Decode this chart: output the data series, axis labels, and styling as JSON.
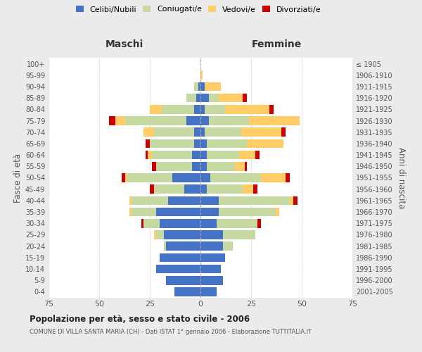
{
  "age_groups": [
    "0-4",
    "5-9",
    "10-14",
    "15-19",
    "20-24",
    "25-29",
    "30-34",
    "35-39",
    "40-44",
    "45-49",
    "50-54",
    "55-59",
    "60-64",
    "65-69",
    "70-74",
    "75-79",
    "80-84",
    "85-89",
    "90-94",
    "95-99",
    "100+"
  ],
  "birth_years": [
    "2001-2005",
    "1996-2000",
    "1991-1995",
    "1986-1990",
    "1981-1985",
    "1976-1980",
    "1971-1975",
    "1966-1970",
    "1961-1965",
    "1956-1960",
    "1951-1955",
    "1946-1950",
    "1941-1945",
    "1936-1940",
    "1931-1935",
    "1926-1930",
    "1921-1925",
    "1916-1920",
    "1911-1915",
    "1906-1910",
    "≤ 1905"
  ],
  "maschi": {
    "celibi": [
      13,
      17,
      22,
      20,
      17,
      18,
      20,
      22,
      16,
      8,
      14,
      4,
      4,
      3,
      3,
      7,
      3,
      2,
      1,
      0,
      0
    ],
    "coniugati": [
      0,
      0,
      0,
      0,
      1,
      4,
      8,
      12,
      18,
      15,
      22,
      18,
      20,
      22,
      20,
      30,
      16,
      5,
      2,
      0,
      0
    ],
    "vedovi": [
      0,
      0,
      0,
      0,
      0,
      1,
      0,
      1,
      1,
      0,
      1,
      0,
      2,
      0,
      5,
      5,
      6,
      0,
      0,
      0,
      0
    ],
    "divorziati": [
      0,
      0,
      0,
      0,
      0,
      0,
      1,
      0,
      0,
      2,
      2,
      2,
      1,
      2,
      0,
      3,
      0,
      0,
      0,
      0,
      0
    ]
  },
  "femmine": {
    "nubili": [
      8,
      11,
      10,
      12,
      11,
      11,
      8,
      9,
      9,
      3,
      5,
      3,
      3,
      3,
      2,
      4,
      2,
      4,
      2,
      0,
      0
    ],
    "coniugate": [
      0,
      0,
      0,
      0,
      5,
      16,
      20,
      28,
      35,
      18,
      25,
      14,
      16,
      20,
      18,
      20,
      10,
      5,
      0,
      0,
      0
    ],
    "vedove": [
      0,
      0,
      0,
      0,
      0,
      0,
      0,
      2,
      2,
      5,
      12,
      5,
      8,
      18,
      20,
      25,
      22,
      12,
      8,
      1,
      0
    ],
    "divorziate": [
      0,
      0,
      0,
      0,
      0,
      0,
      2,
      0,
      2,
      2,
      2,
      1,
      2,
      0,
      2,
      0,
      2,
      2,
      0,
      0,
      0
    ]
  },
  "colors": {
    "celibi": "#4472C4",
    "coniugati": "#C5D9A0",
    "vedovi": "#FFCC66",
    "divorziati": "#CC0000"
  },
  "xlim": 75,
  "title": "Popolazione per età, sesso e stato civile - 2006",
  "subtitle": "COMUNE DI VILLA SANTA MARIA (CH) - Dati ISTAT 1° gennaio 2006 - Elaborazione TUTTITALIA.IT",
  "ylabel_left": "Fasce di età",
  "ylabel_right": "Anni di nascita",
  "xlabel_left": "Maschi",
  "xlabel_right": "Femmine",
  "bg_color": "#ebebeb",
  "plot_bg_color": "#ffffff"
}
